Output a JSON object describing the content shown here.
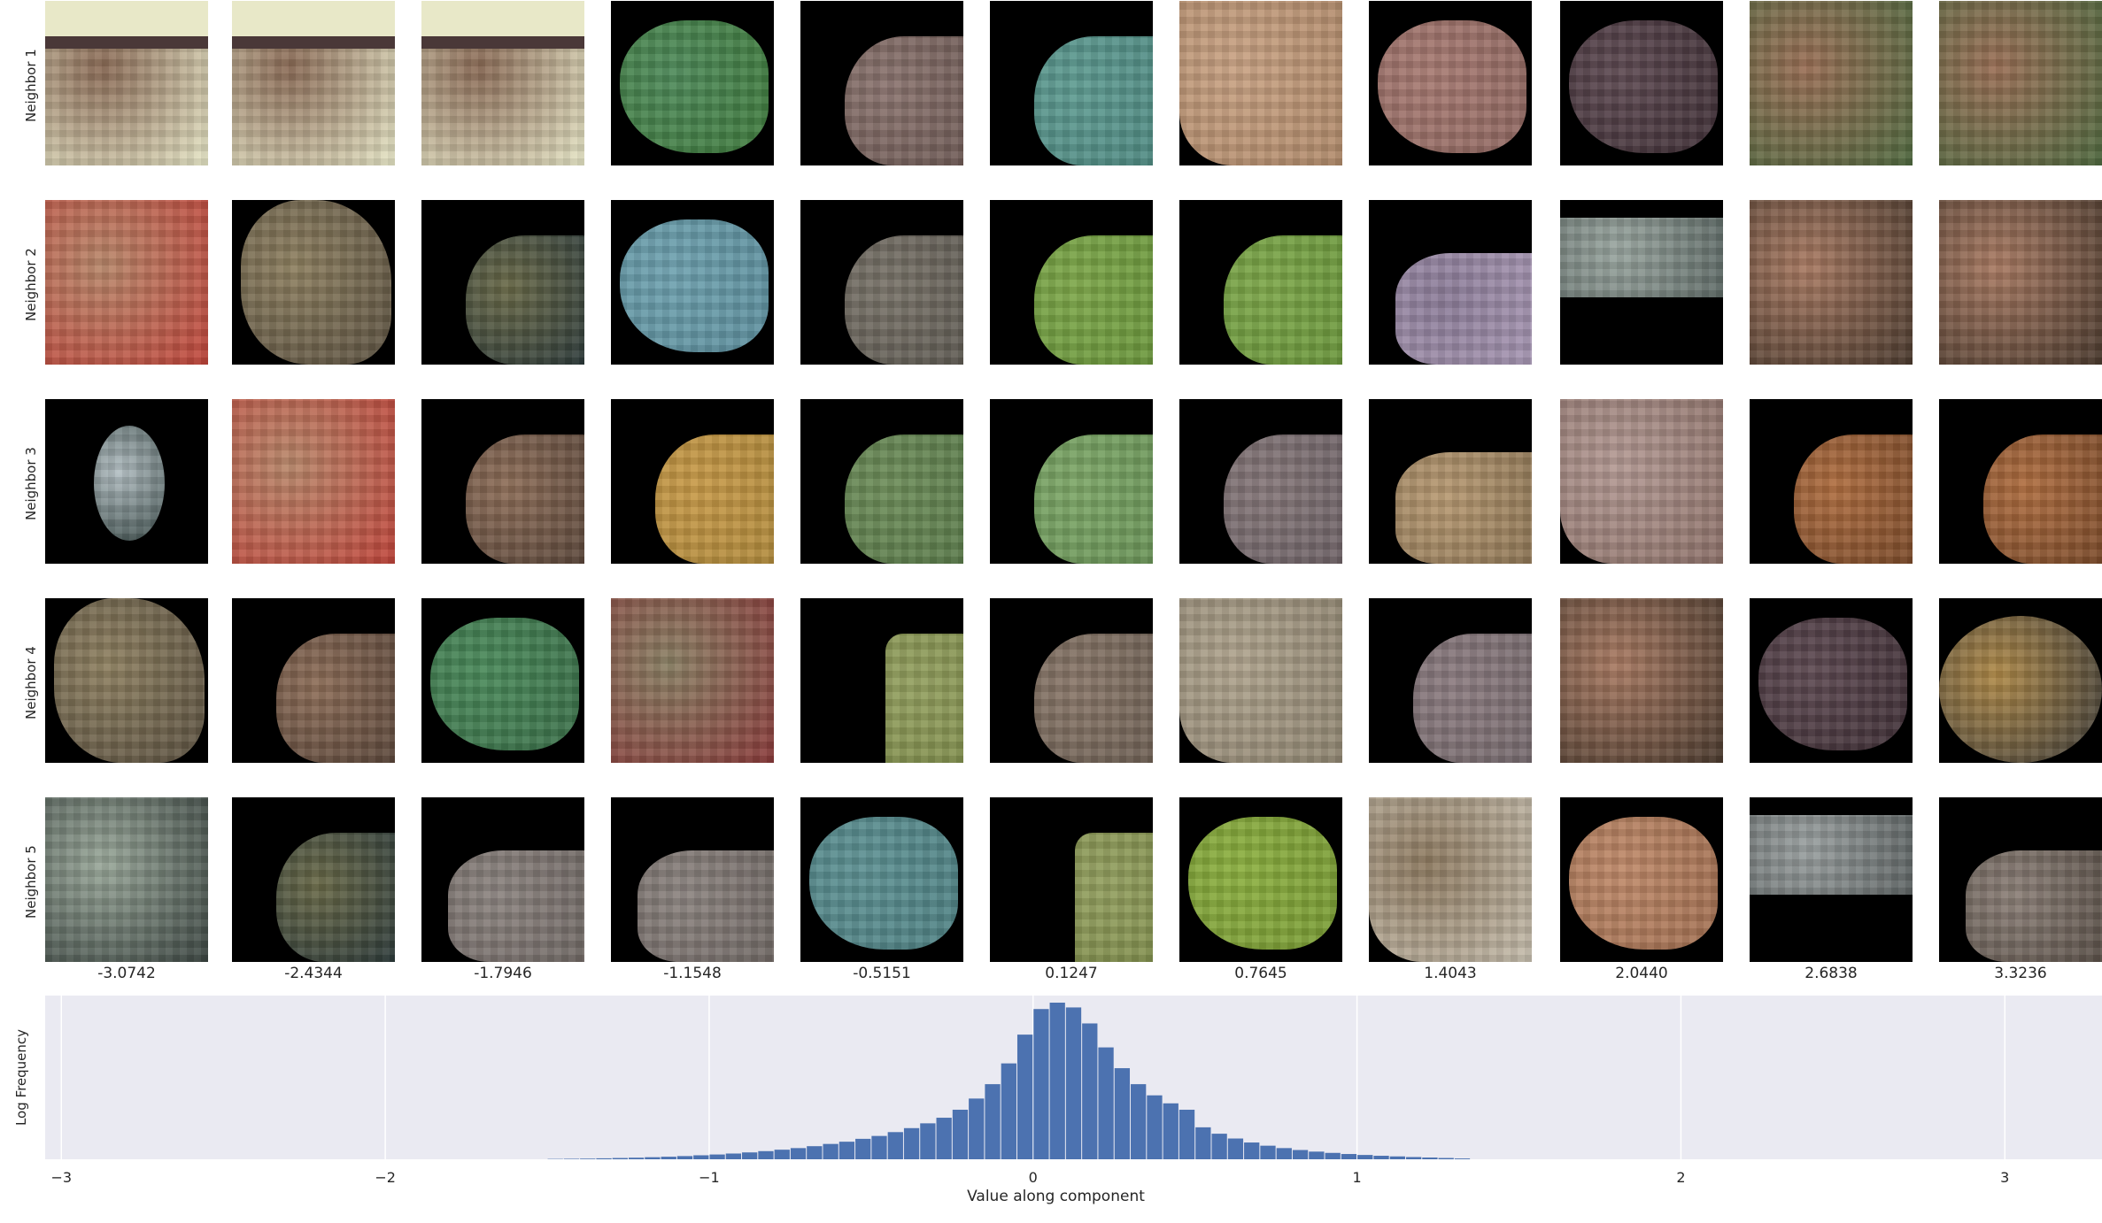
{
  "rows": [
    {
      "label": "Neighbor 1",
      "tiles": [
        {
          "color": "#8a6a55",
          "accent": "#e8e8c8",
          "shape": "top-band"
        },
        {
          "color": "#8a6a55",
          "accent": "#e8e8c8",
          "shape": "top-band"
        },
        {
          "color": "#8a6a55",
          "accent": "#e8e8c8",
          "shape": "top-band"
        },
        {
          "color": "#4e8a5a",
          "accent": "#3f7a3c",
          "shape": "blob"
        },
        {
          "color": "#8c7570",
          "accent": "#6e5a55",
          "shape": "right-blob"
        },
        {
          "color": "#5f9c92",
          "accent": "#4f8a82",
          "shape": "right-blob"
        },
        {
          "color": "#c9a283",
          "accent": "#b08a6a",
          "shape": "full-cut"
        },
        {
          "color": "#a87b72",
          "accent": "#8e6660",
          "shape": "blob"
        },
        {
          "color": "#5e4a52",
          "accent": "#3e2e35",
          "shape": "blob"
        },
        {
          "color": "#9a6e55",
          "accent": "#4f6a40",
          "shape": "full"
        },
        {
          "color": "#9a6e55",
          "accent": "#4f6a40",
          "shape": "full"
        }
      ]
    },
    {
      "label": "Neighbor 2",
      "tiles": [
        {
          "color": "#b8876a",
          "accent": "#c0443a",
          "shape": "full"
        },
        {
          "color": "#8e8060",
          "accent": "#5a5040",
          "shape": "diamond"
        },
        {
          "color": "#6a6a48",
          "accent": "#2c3a3a",
          "shape": "right-blob"
        },
        {
          "color": "#6fa2b0",
          "accent": "#5c8e9c",
          "shape": "blob"
        },
        {
          "color": "#7a746a",
          "accent": "#5e5a52",
          "shape": "right-blob"
        },
        {
          "color": "#7ea84a",
          "accent": "#6a963c",
          "shape": "right-blob"
        },
        {
          "color": "#7ea84a",
          "accent": "#6a963c",
          "shape": "right-blob"
        },
        {
          "color": "#8c7c98",
          "accent": "#a898b4",
          "shape": "bottom-blob"
        },
        {
          "color": "#9aa6a0",
          "accent": "#5e6a66",
          "shape": "band"
        },
        {
          "color": "#a97a62",
          "accent": "#4a3a2e",
          "shape": "full"
        },
        {
          "color": "#a97a62",
          "accent": "#4a3a2e",
          "shape": "full"
        }
      ]
    },
    {
      "label": "Neighbor 3",
      "tiles": [
        {
          "color": "#b4c0c4",
          "accent": "#3a4a48",
          "shape": "glow"
        },
        {
          "color": "#b8876a",
          "accent": "#c0443a",
          "shape": "full"
        },
        {
          "color": "#8e6e58",
          "accent": "#5a463a",
          "shape": "right-blob"
        },
        {
          "color": "#c89a48",
          "accent": "#b08a3c",
          "shape": "right-blob"
        },
        {
          "color": "#6e8e5a",
          "accent": "#5a7a4a",
          "shape": "right-blob"
        },
        {
          "color": "#7ea868",
          "accent": "#6a9458",
          "shape": "right-blob"
        },
        {
          "color": "#86787a",
          "accent": "#6e6266",
          "shape": "right-blob"
        },
        {
          "color": "#b89a72",
          "accent": "#8e7656",
          "shape": "bottom-blob"
        },
        {
          "color": "#b49a94",
          "accent": "#8c7068",
          "shape": "full-cut"
        },
        {
          "color": "#b06e40",
          "accent": "#7a4a2a",
          "shape": "right-blob"
        },
        {
          "color": "#b06e40",
          "accent": "#7a4a2a",
          "shape": "right-blob"
        }
      ]
    },
    {
      "label": "Neighbor 4",
      "tiles": [
        {
          "color": "#8e8060",
          "accent": "#5a5040",
          "shape": "diamond"
        },
        {
          "color": "#8e6e58",
          "accent": "#5a463a",
          "shape": "right-blob"
        },
        {
          "color": "#4a8a5a",
          "accent": "#3a6e48",
          "shape": "blob"
        },
        {
          "color": "#8a8064",
          "accent": "#8a3a3a",
          "shape": "full"
        },
        {
          "color": "#94a060",
          "accent": "#82904e",
          "shape": "right-rect"
        },
        {
          "color": "#8a786a",
          "accent": "#6e6054",
          "shape": "right-blob"
        },
        {
          "color": "#b0a48e",
          "accent": "#908672",
          "shape": "full-cut"
        },
        {
          "color": "#8c7c80",
          "accent": "#766a6e",
          "shape": "right-blob"
        },
        {
          "color": "#a97a62",
          "accent": "#4a3a2e",
          "shape": "full"
        },
        {
          "color": "#5e4a52",
          "accent": "#3e2e35",
          "shape": "blob"
        },
        {
          "color": "#b08a48",
          "accent": "#3a3a3a",
          "shape": "circle"
        }
      ]
    },
    {
      "label": "Neighbor 5",
      "tiles": [
        {
          "color": "#9aa89a",
          "accent": "#3a4440",
          "shape": "full"
        },
        {
          "color": "#6a6a48",
          "accent": "#2c3a3a",
          "shape": "right-blob"
        },
        {
          "color": "#8c8480",
          "accent": "#706864",
          "shape": "bottom-blob"
        },
        {
          "color": "#8c8480",
          "accent": "#706864",
          "shape": "bottom-blob"
        },
        {
          "color": "#5e9294",
          "accent": "#4e8082",
          "shape": "blob"
        },
        {
          "color": "#94a060",
          "accent": "#82904e",
          "shape": "right-rect"
        },
        {
          "color": "#8cb040",
          "accent": "#789a34",
          "shape": "blob"
        },
        {
          "color": "#8e7a60",
          "accent": "#c8c0b0",
          "shape": "full-cut"
        },
        {
          "color": "#c08a6a",
          "accent": "#a06e50",
          "shape": "blob"
        },
        {
          "color": "#9aa0a0",
          "accent": "#5e6464",
          "shape": "band"
        },
        {
          "color": "#8c8078",
          "accent": "#5a5048",
          "shape": "bottom-blob"
        }
      ]
    }
  ],
  "column_labels": [
    "-3.0742",
    "-2.4344",
    "-1.7946",
    "-1.1548",
    "-0.5151",
    "0.1247",
    "0.7645",
    "1.4043",
    "2.0440",
    "2.6838",
    "3.3236"
  ],
  "chart_data": {
    "type": "bar",
    "xlabel": "Value along component",
    "ylabel": "Log Frequency",
    "xlim": [
      -3.05,
      3.3
    ],
    "xticks": [
      -3,
      -2,
      -1,
      0,
      1,
      2,
      3
    ],
    "xtick_labels": [
      "−3",
      "−2",
      "−1",
      "0",
      "1",
      "2",
      "3"
    ],
    "grid": true,
    "background": "#eaeaf2",
    "bar_color": "#4c72b0",
    "bins": [
      -1.5,
      -1.45,
      -1.4,
      -1.35,
      -1.3,
      -1.25,
      -1.2,
      -1.15,
      -1.1,
      -1.05,
      -1.0,
      -0.95,
      -0.9,
      -0.85,
      -0.8,
      -0.75,
      -0.7,
      -0.65,
      -0.6,
      -0.55,
      -0.5,
      -0.45,
      -0.4,
      -0.35,
      -0.3,
      -0.25,
      -0.2,
      -0.15,
      -0.1,
      -0.05,
      0.0,
      0.05,
      0.1,
      0.15,
      0.2,
      0.25,
      0.3,
      0.35,
      0.4,
      0.45,
      0.5,
      0.55,
      0.6,
      0.65,
      0.7,
      0.75,
      0.8,
      0.85,
      0.9,
      0.95,
      1.0,
      1.05,
      1.1,
      1.15,
      1.2,
      1.25,
      1.3
    ],
    "values": [
      0.2,
      0.3,
      0.4,
      0.6,
      0.8,
      1.0,
      1.3,
      1.6,
      2.0,
      2.5,
      3.0,
      3.6,
      4.3,
      5.1,
      6.0,
      7.0,
      8.2,
      9.6,
      11.0,
      12.8,
      14.6,
      17.0,
      19.5,
      22.5,
      26,
      31,
      38,
      47,
      60,
      78,
      94,
      98,
      95,
      85,
      70,
      57,
      47,
      40,
      35,
      31,
      20,
      16,
      13,
      10.5,
      8.5,
      7.0,
      5.8,
      4.8,
      4.0,
      3.3,
      2.7,
      2.2,
      1.8,
      1.4,
      1.1,
      0.8,
      0.5
    ]
  }
}
